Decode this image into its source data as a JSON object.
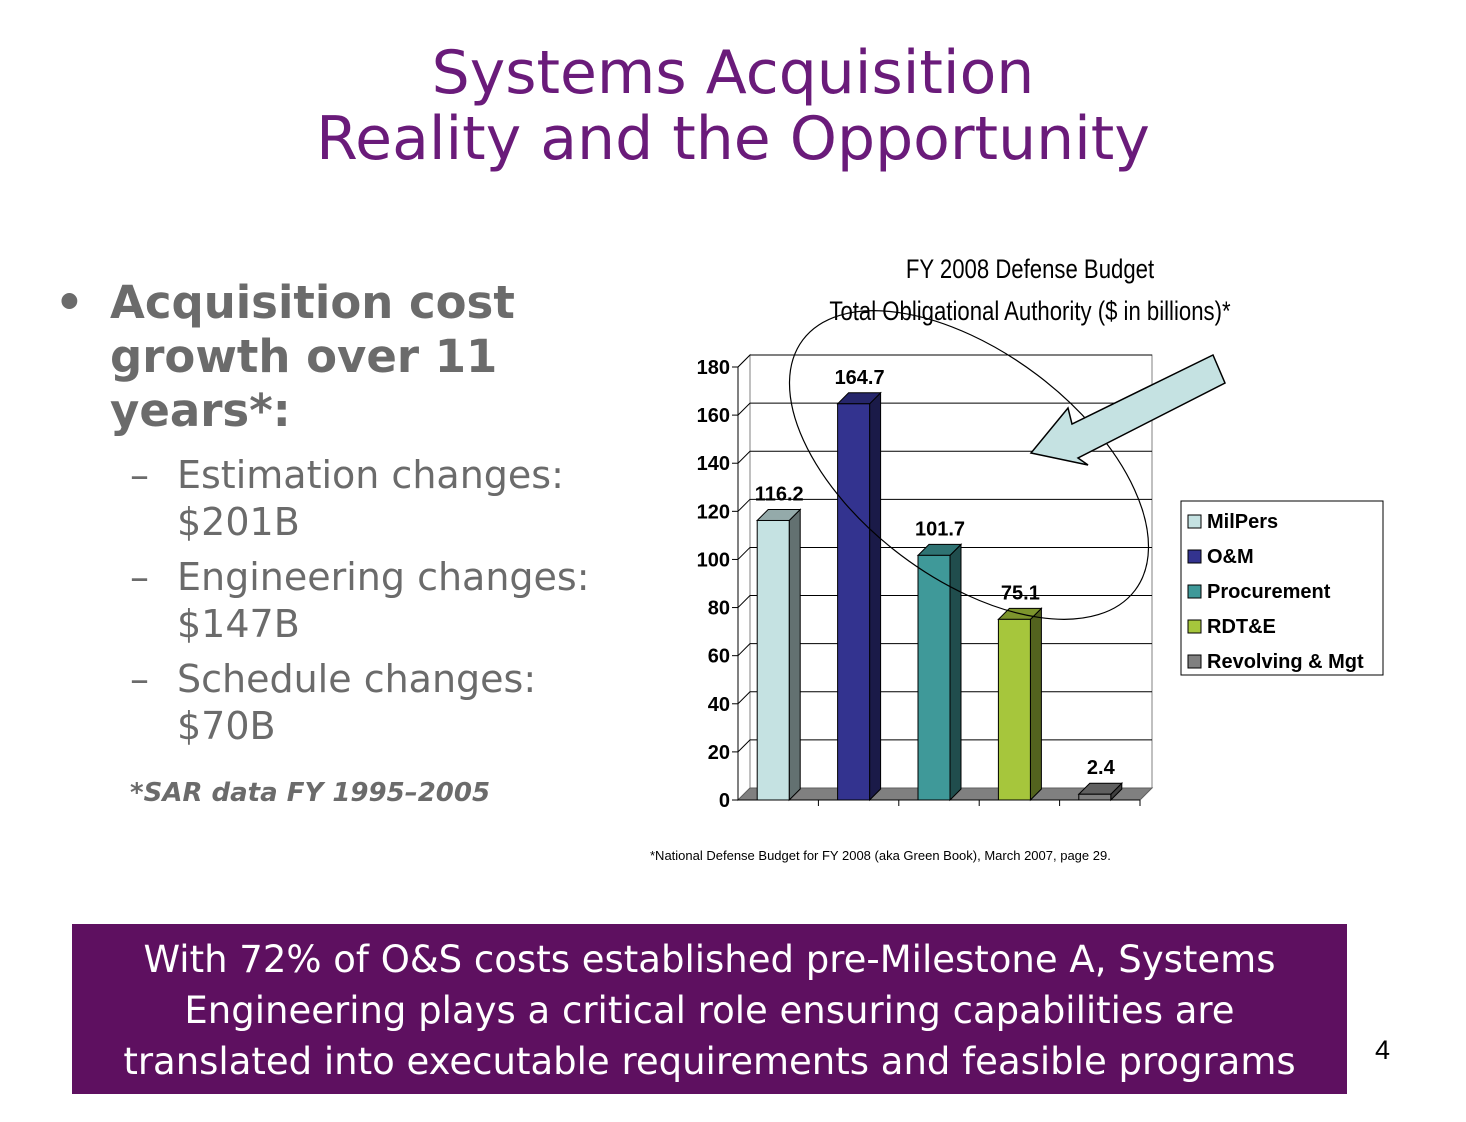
{
  "slide": {
    "title_line1": "Systems Acquisition",
    "title_line2": "Reality and the Opportunity",
    "bullet": {
      "marker": "•",
      "text_lines": [
        "Acquisition cost",
        "growth over 11",
        "years*:"
      ]
    },
    "sub_bullets": [
      {
        "dash": "–",
        "line1": "Estimation changes:",
        "line2": "$201B"
      },
      {
        "dash": "–",
        "line1": "Engineering changes:",
        "line2": "$147B"
      },
      {
        "dash": "–",
        "line1": "Schedule changes:",
        "line2": "$70B"
      }
    ],
    "footnote": "*SAR data FY 1995–2005",
    "source_note": "*National Defense Budget for FY 2008 (aka Green Book), March 2007, page 29.",
    "banner_lines": [
      "With 72% of O&S costs established pre-Milestone A, Systems",
      "Engineering plays a critical role ensuring capabilities are",
      "translated into executable requirements and feasible programs"
    ],
    "page_number": "4"
  },
  "chart_data": {
    "type": "bar",
    "title": "FY 2008 Defense Budget",
    "subtitle": "Total Obligational Authority ($ in billions)*",
    "categories": [
      "MilPers",
      "O&M",
      "Procurement",
      "RDT&E",
      "Revolving & Mgt"
    ],
    "values": [
      116.2,
      164.7,
      101.7,
      75.1,
      2.4
    ],
    "value_labels": [
      "116.2",
      "164.7",
      "101.7",
      "75.1",
      "2.4"
    ],
    "colors": [
      "#c5e2e2",
      "#33338f",
      "#3f9999",
      "#a6c63c",
      "#808080"
    ],
    "ylim": [
      0,
      180
    ],
    "yticks": [
      0,
      20,
      40,
      60,
      80,
      100,
      120,
      140,
      160,
      180
    ],
    "grid": true,
    "legend": "right",
    "style": "3d",
    "annotation": {
      "shape": "ellipse-with-arrow",
      "arrow_color": "#c5e2e2"
    }
  }
}
